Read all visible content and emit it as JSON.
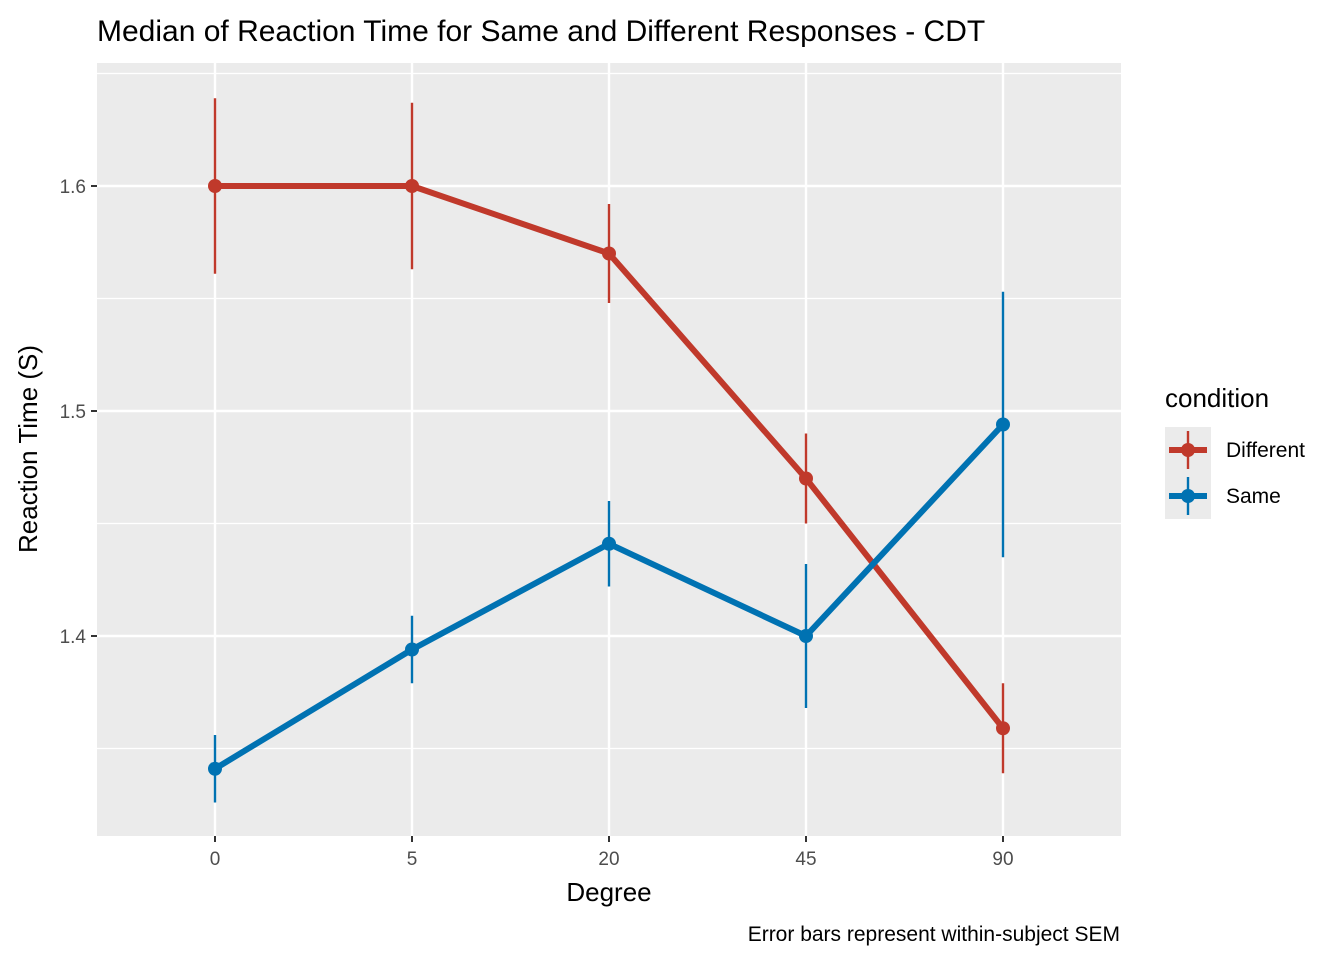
{
  "chart_data": {
    "type": "line",
    "title": "Median of Reaction Time for Same and Different Responses - CDT",
    "xlabel": "Degree",
    "ylabel": "Reaction Time (S)",
    "caption": "Error bars represent within-subject SEM",
    "categories": [
      "0",
      "5",
      "20",
      "45",
      "90"
    ],
    "y_ticks": [
      "1.4",
      "1.5",
      "1.6"
    ],
    "ylim": [
      1.31,
      1.65
    ],
    "grid": true,
    "legend_title": "condition",
    "legend_position": "right",
    "series": [
      {
        "name": "Different",
        "color": "#c0392b",
        "values": [
          1.6,
          1.6,
          1.57,
          1.47,
          1.359
        ],
        "error_low": [
          1.561,
          1.563,
          1.548,
          1.45,
          1.339
        ],
        "error_high": [
          1.639,
          1.637,
          1.592,
          1.49,
          1.379
        ]
      },
      {
        "name": "Same",
        "color": "#0072b2",
        "values": [
          1.341,
          1.394,
          1.441,
          1.4,
          1.494
        ],
        "error_low": [
          1.326,
          1.379,
          1.422,
          1.368,
          1.435
        ],
        "error_high": [
          1.356,
          1.409,
          1.46,
          1.432,
          1.553
        ]
      }
    ]
  }
}
